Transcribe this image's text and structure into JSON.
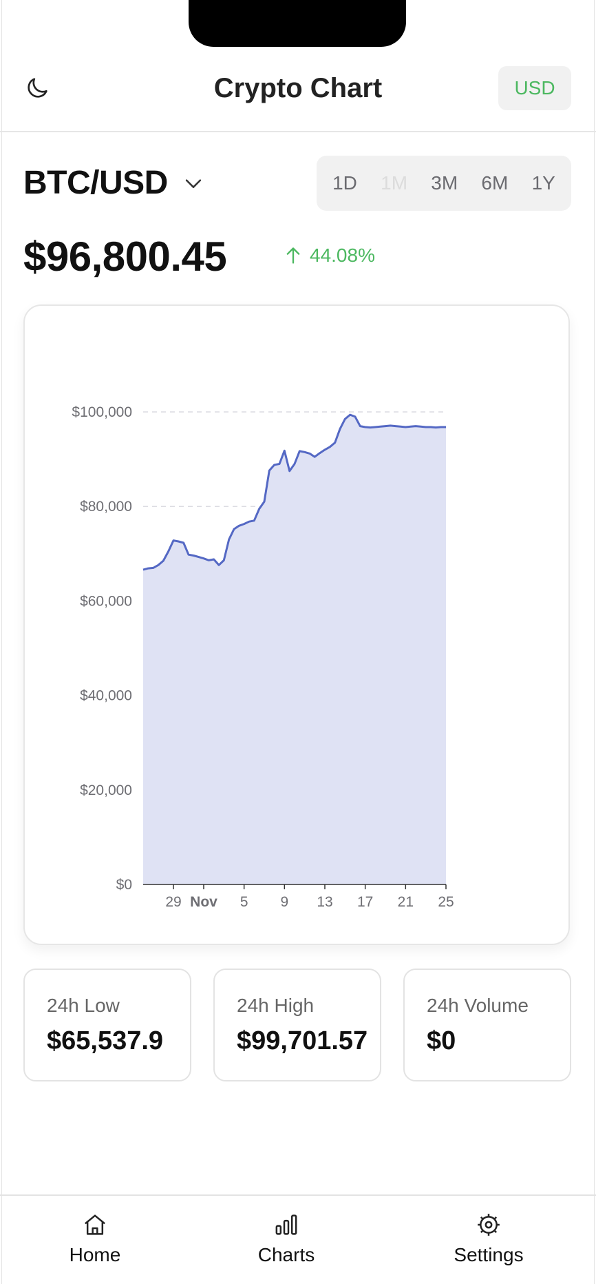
{
  "header": {
    "title": "Crypto Chart",
    "currency": "USD",
    "theme_icon": "moon-icon"
  },
  "pair": {
    "label": "BTC/USD",
    "chevron_icon": "chevron-down-icon"
  },
  "ranges": [
    {
      "label": "1D",
      "active": false
    },
    {
      "label": "1M",
      "active": true
    },
    {
      "label": "3M",
      "active": false
    },
    {
      "label": "6M",
      "active": false
    },
    {
      "label": "1Y",
      "active": false
    }
  ],
  "price": {
    "value": "$96,800.45",
    "change": "44.08%",
    "direction": "up"
  },
  "colors": {
    "line": "#5468c4",
    "fill": "#dfe2f4",
    "positive": "#4cb860"
  },
  "chart_data": {
    "type": "area",
    "x_tick_labels": [
      "29",
      "Nov",
      "5",
      "9",
      "13",
      "17",
      "21",
      "25"
    ],
    "y_tick_labels": [
      "$0",
      "$20,000",
      "$40,000",
      "$60,000",
      "$80,000",
      "$100,000"
    ],
    "ylim": [
      0,
      100000
    ],
    "grid": true,
    "x_start_date": "2024-10-26",
    "x": [
      0,
      0.5,
      1,
      1.5,
      2,
      2.5,
      3,
      3.5,
      4,
      4.5,
      5,
      5.5,
      6,
      6.5,
      7,
      7.5,
      8,
      8.5,
      9,
      9.5,
      10,
      10.5,
      11,
      11.5,
      12,
      12.5,
      13,
      13.5,
      14,
      14.5,
      15,
      15.5,
      16,
      16.5,
      17,
      17.5,
      18,
      18.5,
      19,
      19.5,
      20,
      20.5,
      21,
      21.5,
      22,
      22.5,
      23,
      23.5,
      24,
      24.5,
      25,
      25.5,
      26,
      26.5,
      27,
      27.5,
      28,
      28.5,
      29,
      29.5,
      30
    ],
    "values": [
      66600,
      66900,
      67000,
      67600,
      68500,
      70500,
      72800,
      72600,
      72300,
      69800,
      69600,
      69300,
      69000,
      68600,
      68800,
      67600,
      68600,
      73000,
      75200,
      75900,
      76300,
      76800,
      77000,
      79500,
      81000,
      87600,
      88800,
      89000,
      91800,
      87500,
      89000,
      91700,
      91500,
      91200,
      90500,
      91300,
      92000,
      92600,
      93500,
      96400,
      98500,
      99400,
      99000,
      97000,
      96800,
      96700,
      96800,
      96900,
      97000,
      97100,
      97000,
      96900,
      96800,
      96900,
      97000,
      96900,
      96800,
      96800,
      96700,
      96800,
      96800
    ]
  },
  "stats": [
    {
      "label": "24h Low",
      "value": "$65,537.9"
    },
    {
      "label": "24h High",
      "value": "$99,701.57"
    },
    {
      "label": "24h Volume",
      "value": "$0"
    }
  ],
  "tabs": [
    {
      "label": "Home",
      "icon": "home-icon"
    },
    {
      "label": "Charts",
      "icon": "bar-chart-icon"
    },
    {
      "label": "Settings",
      "icon": "gear-icon"
    }
  ]
}
